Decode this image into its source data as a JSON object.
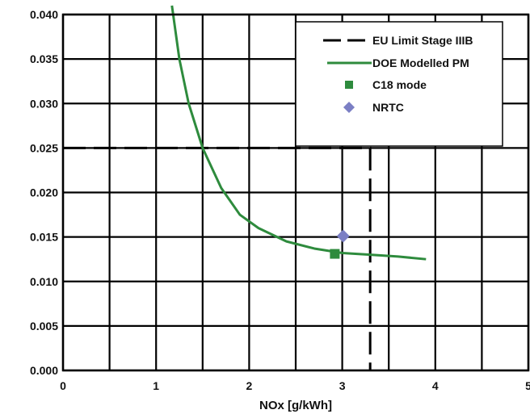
{
  "chart_data": {
    "type": "line",
    "title": "",
    "xlabel": "NOx [g/kWh]",
    "ylabel": "",
    "xlim": [
      0,
      5
    ],
    "ylim": [
      0,
      0.04
    ],
    "x_ticks": [
      0,
      0.5,
      1,
      1.5,
      2,
      2.5,
      3,
      3.5,
      4,
      4.5,
      5
    ],
    "x_tick_labels": [
      "0",
      "1",
      "2",
      "3",
      "4",
      "5"
    ],
    "x_tick_label_values": [
      0,
      1,
      2,
      3,
      4,
      5
    ],
    "y_ticks": [
      0,
      0.005,
      0.01,
      0.015,
      0.02,
      0.025,
      0.03,
      0.035,
      0.04
    ],
    "y_tick_labels": [
      "0.000",
      "0.005",
      "0.010",
      "0.015",
      "0.020",
      "0.025",
      "0.030",
      "0.035",
      "0.040"
    ],
    "grid": true,
    "legend_position": "top-right",
    "series": [
      {
        "name": "EU Limit Stage IIIB",
        "kind": "dashed-line",
        "color": "#000000",
        "x": [
          0,
          3.3,
          3.3
        ],
        "y": [
          0.025,
          0.025,
          0
        ]
      },
      {
        "name": "DOE Modelled PM",
        "kind": "line",
        "color": "#2e8b3d",
        "x": [
          1.17,
          1.25,
          1.35,
          1.5,
          1.7,
          1.9,
          2.1,
          2.4,
          2.7,
          3.0,
          3.3,
          3.6,
          3.9
        ],
        "y": [
          0.041,
          0.035,
          0.03,
          0.025,
          0.0205,
          0.0175,
          0.016,
          0.0145,
          0.0137,
          0.0132,
          0.013,
          0.0128,
          0.0125
        ]
      },
      {
        "name": "C18 mode",
        "kind": "marker-square",
        "color": "#2e8b3d",
        "x": [
          2.92
        ],
        "y": [
          0.0131
        ]
      },
      {
        "name": "NRTC",
        "kind": "marker-diamond",
        "color": "#7b7fc4",
        "x": [
          3.01
        ],
        "y": [
          0.0151
        ]
      }
    ]
  }
}
